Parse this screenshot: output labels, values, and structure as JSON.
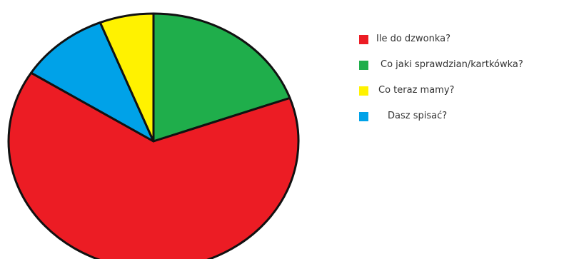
{
  "chart_data": {
    "type": "pie",
    "title": "",
    "start_angle_deg": 0,
    "direction": "clockwise",
    "slices": [
      {
        "label": "Co jaki sprawdzian/kartkówka?",
        "value": 19.5,
        "color": "#1fae4b"
      },
      {
        "label": "Ile do dzwonka?",
        "value": 64.5,
        "color": "#ec1c24"
      },
      {
        "label": "Dasz spisać?",
        "value": 10.0,
        "color": "#00a2e8"
      },
      {
        "label": "Co teraz mamy?",
        "value": 6.0,
        "color": "#fff200"
      }
    ],
    "legend_order": [
      "Ile do dzwonka?",
      "Co jaki sprawdzian/kartkówka?",
      "Co teraz mamy?",
      "Dasz spisać?"
    ],
    "legend_position": "right"
  }
}
